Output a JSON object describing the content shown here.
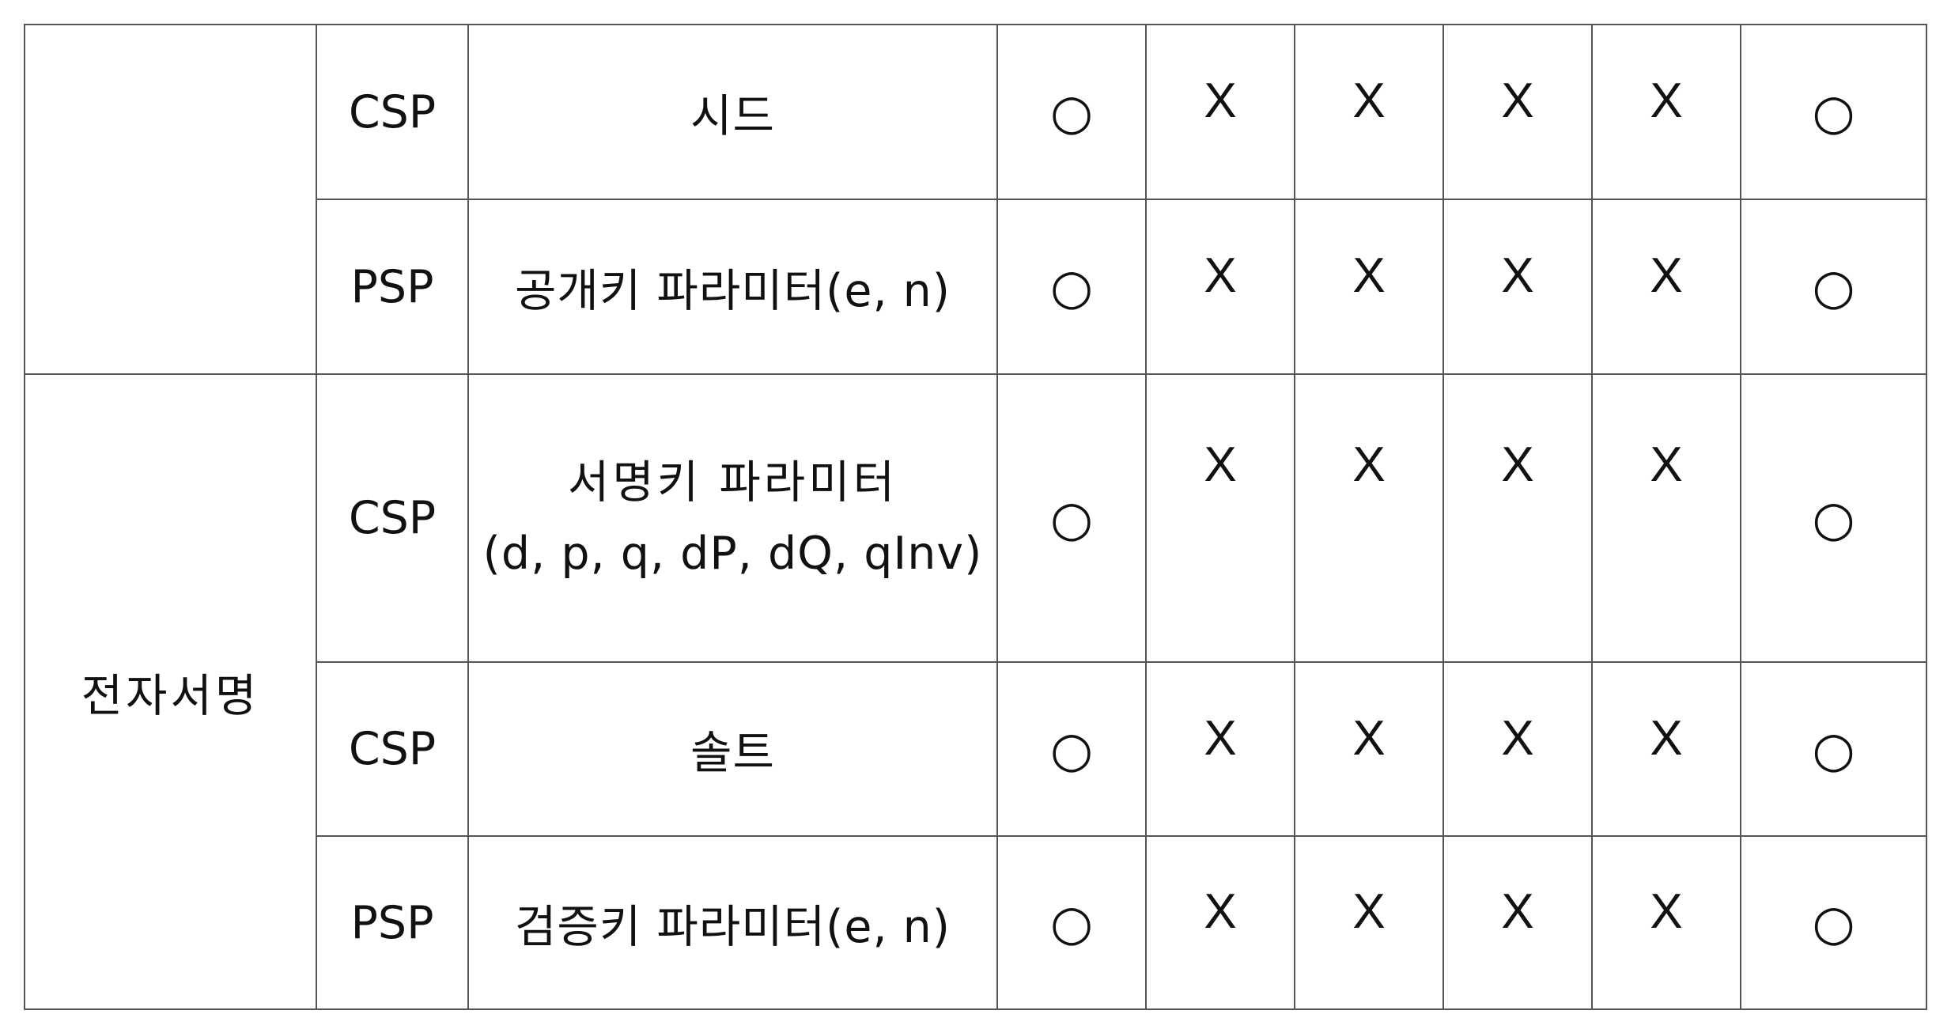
{
  "table": {
    "rows": [
      {
        "group": "",
        "role": "CSP",
        "item_lines": [
          "시드"
        ],
        "marks": [
          "○",
          "X",
          "X",
          "X",
          "X",
          "○"
        ]
      },
      {
        "role": "PSP",
        "item_lines": [
          "공개키 파라미터(e, n)"
        ],
        "marks": [
          "○",
          "X",
          "X",
          "X",
          "X",
          "○"
        ]
      },
      {
        "group": "전자서명",
        "role": "CSP",
        "item_lines": [
          "서명키 파라미터",
          "(d, p, q, dP, dQ, qInv)"
        ],
        "marks": [
          "○",
          "X",
          "X",
          "X",
          "X",
          "○"
        ]
      },
      {
        "role": "CSP",
        "item_lines": [
          "솔트"
        ],
        "marks": [
          "○",
          "X",
          "X",
          "X",
          "X",
          "○"
        ]
      },
      {
        "role": "PSP",
        "item_lines": [
          "검증키 파라미터(e, n)"
        ],
        "marks": [
          "○",
          "X",
          "X",
          "X",
          "X",
          "○"
        ]
      }
    ]
  }
}
